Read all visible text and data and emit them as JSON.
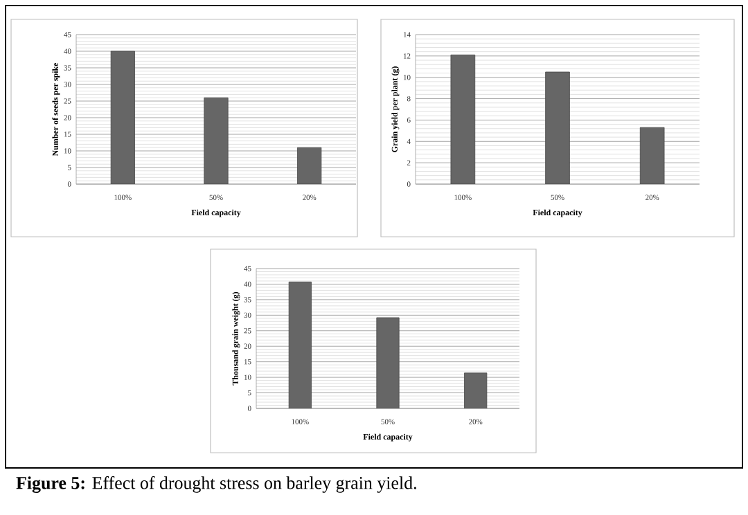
{
  "chart_data": [
    {
      "type": "bar",
      "xlabel": "Field capacity",
      "ylabel": "Number of seeds per spike",
      "categories": [
        "100%",
        "50%",
        "20%"
      ],
      "values": [
        40,
        26,
        11
      ],
      "color": "#666666",
      "ylim": [
        0,
        45
      ],
      "yticks": [
        0,
        5,
        10,
        15,
        20,
        25,
        30,
        35,
        40,
        45
      ],
      "grid": "y"
    },
    {
      "type": "bar",
      "xlabel": "Field capacity",
      "ylabel": "Grain yield per plant (g)",
      "categories": [
        "100%",
        "50%",
        "20%"
      ],
      "values": [
        12.1,
        10.5,
        5.3
      ],
      "color": "#666666",
      "ylim": [
        0,
        14
      ],
      "yticks": [
        0,
        2,
        4,
        6,
        8,
        10,
        12,
        14
      ],
      "grid": "y"
    },
    {
      "type": "bar",
      "xlabel": "Field capacity",
      "ylabel": "Thousand grain weight (g)",
      "categories": [
        "100%",
        "50%",
        "20%"
      ],
      "values": [
        40.7,
        29.2,
        11.4
      ],
      "color": "#666666",
      "ylim": [
        0,
        45
      ],
      "yticks": [
        0,
        5,
        10,
        15,
        20,
        25,
        30,
        35,
        40,
        45
      ],
      "grid": "y",
      "annotations": [
        "**Figure 5:** Effect of drought stress on barley grain yield."
      ]
    }
  ]
}
